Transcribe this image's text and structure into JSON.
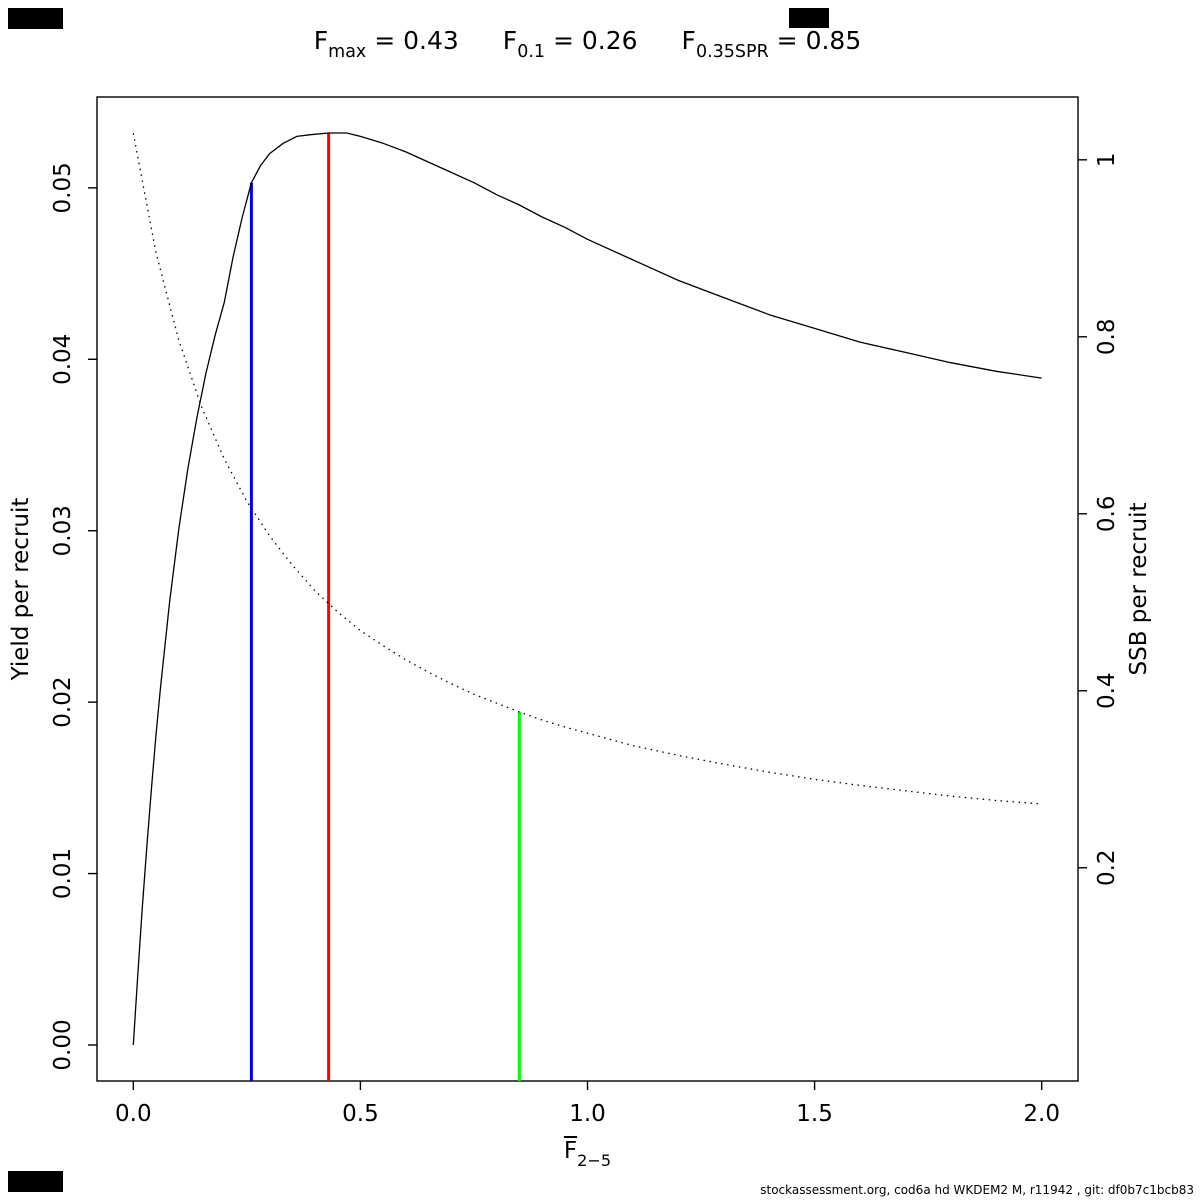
{
  "title": {
    "items": [
      {
        "base": "F",
        "sub": "max",
        "rest": " = 0.43"
      },
      {
        "base": "F",
        "sub": "0.1",
        "rest": " = 0.26"
      },
      {
        "base": "F",
        "sub": "0.35SPR",
        "rest": " = 0.85"
      }
    ]
  },
  "axes": {
    "x_label_base": "F",
    "x_label_sub": "2−5",
    "y_left_label": "Yield per recruit",
    "y_right_label": "SSB per recruit"
  },
  "footer": {
    "text": "stockassessment.org, cod6a hd WKDEM2 M, r11942 , git: df0b7c1bcb83"
  },
  "chart_data": {
    "type": "line",
    "title": "Fmax = 0.43, F0.1 = 0.26, F0.35SPR = 0.85",
    "xlabel": "mean F ages 2-5",
    "ylabel_left": "Yield per recruit",
    "ylabel_right": "SSB per recruit",
    "grid": false,
    "xlim": [
      -0.08,
      2.08
    ],
    "ylim_left": [
      -0.0021,
      0.0553
    ],
    "ylim_right": [
      -0.041,
      1.071
    ],
    "x_ticks": {
      "values": [
        0.0,
        0.5,
        1.0,
        1.5,
        2.0
      ],
      "labels": [
        "0.0",
        "0.5",
        "1.0",
        "1.5",
        "2.0"
      ]
    },
    "y_left_ticks": {
      "values": [
        0.0,
        0.01,
        0.02,
        0.03,
        0.04,
        0.05
      ],
      "labels": [
        "0.00",
        "0.01",
        "0.02",
        "0.03",
        "0.04",
        "0.05"
      ]
    },
    "y_right_ticks": {
      "values": [
        0.2,
        0.4,
        0.6,
        0.8,
        1.0
      ],
      "labels": [
        "0.2",
        "0.4",
        "0.6",
        "0.8",
        "1"
      ]
    },
    "series": [
      {
        "name": "yield-per-recruit-curve",
        "axis": "left",
        "style": "solid",
        "color": "#000000",
        "x": [
          0,
          0.01,
          0.02,
          0.03,
          0.04,
          0.05,
          0.06,
          0.08,
          0.1,
          0.12,
          0.14,
          0.16,
          0.18,
          0.2,
          0.22,
          0.24,
          0.26,
          0.28,
          0.3,
          0.33,
          0.36,
          0.39,
          0.43,
          0.47,
          0.5,
          0.55,
          0.6,
          0.65,
          0.7,
          0.75,
          0.8,
          0.85,
          0.9,
          0.95,
          1.0,
          1.1,
          1.2,
          1.3,
          1.4,
          1.5,
          1.6,
          1.7,
          1.8,
          1.9,
          2.0
        ],
        "y": [
          0.0,
          0.0042,
          0.0081,
          0.0117,
          0.015,
          0.0181,
          0.0209,
          0.0259,
          0.0301,
          0.0336,
          0.0366,
          0.0392,
          0.0414,
          0.0433,
          0.046,
          0.0483,
          0.0503,
          0.0513,
          0.052,
          0.0526,
          0.053,
          0.0531,
          0.0532,
          0.0532,
          0.053,
          0.0526,
          0.0521,
          0.0515,
          0.0509,
          0.0503,
          0.0496,
          0.049,
          0.0483,
          0.0477,
          0.047,
          0.0458,
          0.0446,
          0.0436,
          0.0426,
          0.0418,
          0.041,
          0.0404,
          0.0398,
          0.0393,
          0.0389
        ]
      },
      {
        "name": "ssb-per-recruit-curve",
        "axis": "right",
        "style": "dotted",
        "color": "#000000",
        "x": [
          0,
          0.05,
          0.1,
          0.15,
          0.2,
          0.25,
          0.3,
          0.35,
          0.4,
          0.45,
          0.5,
          0.55,
          0.6,
          0.65,
          0.7,
          0.75,
          0.8,
          0.85,
          0.9,
          0.95,
          1.0,
          1.1,
          1.2,
          1.3,
          1.4,
          1.5,
          1.6,
          1.7,
          1.8,
          1.9,
          2.0
        ],
        "y": [
          1.03,
          0.895,
          0.796,
          0.721,
          0.662,
          0.614,
          0.575,
          0.542,
          0.513,
          0.489,
          0.468,
          0.451,
          0.435,
          0.421,
          0.408,
          0.396,
          0.386,
          0.376,
          0.367,
          0.359,
          0.352,
          0.338,
          0.327,
          0.317,
          0.308,
          0.3,
          0.293,
          0.287,
          0.281,
          0.276,
          0.272
        ]
      }
    ],
    "ref_lines": [
      {
        "name": "F0.1",
        "x": 0.26,
        "color": "#0000ff",
        "axis": "left",
        "y_top": 0.0503
      },
      {
        "name": "Fmax",
        "x": 0.43,
        "color": "#ff0000",
        "axis": "left",
        "y_top": 0.0532
      },
      {
        "name": "F0.35SPR",
        "x": 0.85,
        "color": "#00ff00",
        "axis": "right",
        "y_top": 0.376
      }
    ]
  }
}
